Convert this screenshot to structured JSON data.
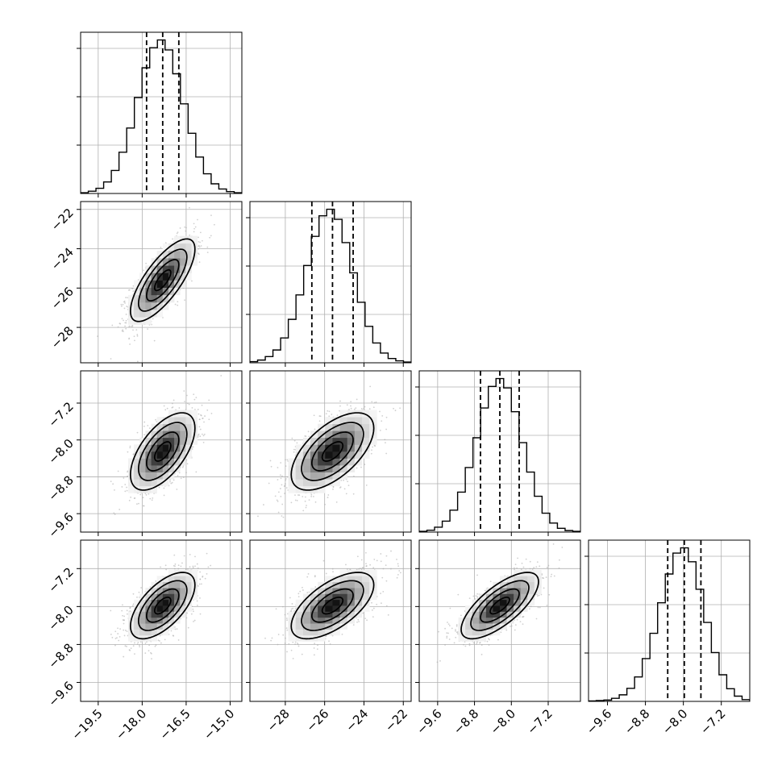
{
  "chart_data": {
    "type": "corner",
    "parameters": [
      {
        "mean": -17.3,
        "sd": 0.55,
        "range": [
          -20.1,
          -14.6
        ],
        "quantiles": [
          -17.85,
          -17.3,
          -16.75
        ],
        "ticks": [
          -19.5,
          -18.0,
          -16.5,
          -15.0
        ],
        "tick_labels": [
          "−19.5",
          "−18.0",
          "−16.5",
          "−15.0"
        ],
        "hist_counts": [
          0.2,
          0.6,
          1.4,
          3.1,
          6.2,
          11.1,
          17.6,
          25.8,
          33.8,
          39.2,
          41.3,
          38.6,
          32.2,
          24.1,
          16.2,
          9.8,
          5.3,
          2.6,
          1.2,
          0.5,
          0.2
        ]
      },
      {
        "mean": -25.6,
        "sd": 1.05,
        "range": [
          -29.8,
          -21.6
        ],
        "quantiles": [
          -26.65,
          -25.6,
          -24.55
        ],
        "ticks": [
          -28,
          -26,
          -24,
          -22
        ],
        "tick_labels": [
          "−28",
          "−26",
          "−24",
          "−22"
        ],
        "hist_counts": [
          0.3,
          0.7,
          1.6,
          3.3,
          6.4,
          11.2,
          17.5,
          25.1,
          32.6,
          37.9,
          39.6,
          37.0,
          31.0,
          23.2,
          15.6,
          9.4,
          5.1,
          2.5,
          1.1,
          0.5,
          0.2
        ]
      },
      {
        "mean": -8.25,
        "sd": 0.42,
        "range": [
          -10.0,
          -6.5
        ],
        "quantiles": [
          -8.67,
          -8.25,
          -7.83
        ],
        "ticks": [
          -9.6,
          -8.8,
          -8.0,
          -7.2
        ],
        "tick_labels": [
          "−9.6",
          "−8.8",
          "−8.0",
          "−7.2"
        ],
        "hist_counts": [
          0.2,
          0.5,
          1.3,
          2.9,
          5.8,
          10.6,
          17.1,
          25.0,
          32.9,
          38.6,
          40.7,
          38.2,
          31.9,
          23.7,
          15.9,
          9.5,
          5.0,
          2.4,
          1.0,
          0.4,
          0.2
        ]
      },
      {
        "mean": -7.98,
        "sd": 0.35,
        "range": [
          -10.0,
          -6.6
        ],
        "quantiles": [
          -8.33,
          -7.98,
          -7.63
        ],
        "ticks": [
          -9.6,
          -8.8,
          -8.0,
          -7.2
        ],
        "tick_labels": [
          "−9.6",
          "−8.8",
          "−8.0",
          "−7.2"
        ],
        "hist_counts": [
          0.1,
          0.2,
          0.3,
          0.7,
          1.5,
          3.0,
          5.6,
          9.8,
          15.6,
          22.6,
          29.2,
          34.0,
          35.2,
          32.0,
          25.7,
          18.1,
          11.2,
          6.1,
          2.9,
          1.2,
          0.4
        ]
      }
    ],
    "pairs": [
      {
        "row": 1,
        "col": 0,
        "corr": 0.75
      },
      {
        "row": 2,
        "col": 0,
        "corr": 0.6
      },
      {
        "row": 2,
        "col": 1,
        "corr": 0.6
      },
      {
        "row": 3,
        "col": 0,
        "corr": 0.62
      },
      {
        "row": 3,
        "col": 1,
        "corr": 0.62
      },
      {
        "row": 3,
        "col": 2,
        "corr": 0.72
      }
    ],
    "contour_levels_sigma": [
      0.5,
      1.0,
      1.5,
      2.0
    ],
    "scatter_points_per_panel": 1400,
    "grid": true,
    "colors": {
      "hist": "#000000",
      "scatter": "#aaaaaa",
      "grid": "#b0b0b0",
      "contour": "#000000"
    }
  }
}
